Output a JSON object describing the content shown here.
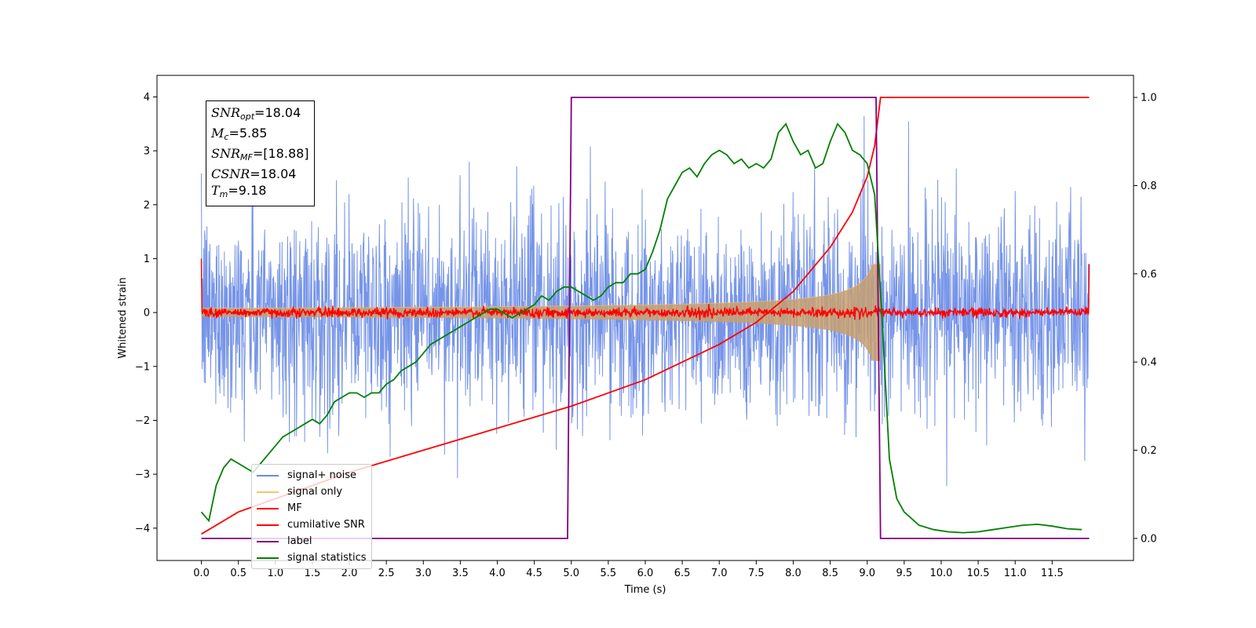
{
  "chart_data": {
    "type": "line",
    "title": "",
    "xlabel": "Time (s)",
    "ylabel": "Whitened strain",
    "y2label": "",
    "xlim": [
      -0.6,
      12.6
    ],
    "ylim": [
      -4.6,
      4.4
    ],
    "y2lim": [
      -0.05,
      1.05
    ],
    "x_ticks": [
      "0.0",
      "0.5",
      "1.0",
      "1.5",
      "2.0",
      "2.5",
      "3.0",
      "3.5",
      "4.0",
      "4.5",
      "5.0",
      "5.5",
      "6.0",
      "6.5",
      "7.0",
      "7.5",
      "8.0",
      "8.5",
      "9.0",
      "9.5",
      "10.0",
      "10.5",
      "11.0",
      "11.5"
    ],
    "y_ticks": [
      "4",
      "3",
      "2",
      "1",
      "0",
      "−1",
      "−2",
      "−3",
      "−4"
    ],
    "y2_ticks": [
      "1.0",
      "0.8",
      "0.6",
      "0.4",
      "0.2",
      "0.0"
    ],
    "legend_position": "lower-left",
    "grid": false,
    "duration_s": 12.0,
    "series": [
      {
        "name": "signal+ noise",
        "color": "#6a8be6",
        "axis": "left",
        "description": "whitened strain noise with embedded chirp, amplitude ~±2.5 with spikes to ±4",
        "envelope_typical": 1.5,
        "envelope_peak": 4.0
      },
      {
        "name": "signal only",
        "color": "#f7c56b",
        "axis": "left",
        "chirp_start_s": 0.0,
        "chirp_end_s": 9.18,
        "start_amplitude": 0.08,
        "end_amplitude": 0.9
      },
      {
        "name": "MF",
        "color": "#ff0000",
        "axis": "left",
        "description": "matched filter output fluctuating near 0",
        "noise_amplitude": 0.08
      },
      {
        "name": "cumilative SNR",
        "color": "#ff0000",
        "axis": "right",
        "x": [
          0.0,
          0.5,
          1.0,
          2.0,
          3.0,
          4.0,
          5.0,
          6.0,
          7.0,
          7.5,
          8.0,
          8.5,
          8.8,
          9.0,
          9.1,
          9.18,
          9.3,
          12.0
        ],
        "y": [
          0.01,
          0.06,
          0.09,
          0.15,
          0.2,
          0.25,
          0.3,
          0.36,
          0.44,
          0.49,
          0.56,
          0.66,
          0.74,
          0.82,
          0.89,
          1.0,
          1.0,
          1.0
        ]
      },
      {
        "name": "label",
        "color": "#800080",
        "axis": "right",
        "x": [
          0.0,
          4.95,
          5.0,
          9.12,
          9.18,
          12.0
        ],
        "y": [
          0.0,
          0.0,
          1.0,
          1.0,
          0.0,
          0.0
        ]
      },
      {
        "name": "signal statistics",
        "color": "#008000",
        "axis": "right",
        "x": [
          0.0,
          0.1,
          0.2,
          0.3,
          0.4,
          0.5,
          0.6,
          0.7,
          0.8,
          0.9,
          1.0,
          1.1,
          1.2,
          1.3,
          1.4,
          1.5,
          1.6,
          1.7,
          1.8,
          1.9,
          2.0,
          2.1,
          2.2,
          2.3,
          2.4,
          2.5,
          2.6,
          2.7,
          2.8,
          2.9,
          3.0,
          3.1,
          3.2,
          3.3,
          3.4,
          3.5,
          3.6,
          3.7,
          3.8,
          3.9,
          4.0,
          4.1,
          4.2,
          4.3,
          4.4,
          4.5,
          4.6,
          4.7,
          4.8,
          4.9,
          5.0,
          5.1,
          5.2,
          5.3,
          5.4,
          5.5,
          5.6,
          5.7,
          5.8,
          5.9,
          6.0,
          6.1,
          6.2,
          6.3,
          6.4,
          6.5,
          6.6,
          6.7,
          6.8,
          6.9,
          7.0,
          7.1,
          7.2,
          7.3,
          7.4,
          7.5,
          7.6,
          7.7,
          7.8,
          7.9,
          8.0,
          8.1,
          8.2,
          8.3,
          8.4,
          8.5,
          8.6,
          8.7,
          8.8,
          8.9,
          9.0,
          9.1,
          9.2,
          9.3,
          9.4,
          9.5,
          9.7,
          9.9,
          10.1,
          10.3,
          10.5,
          10.7,
          10.9,
          11.1,
          11.3,
          11.5,
          11.7,
          11.9
        ],
        "y": [
          0.06,
          0.04,
          0.12,
          0.16,
          0.18,
          0.17,
          0.16,
          0.15,
          0.17,
          0.19,
          0.21,
          0.23,
          0.24,
          0.25,
          0.26,
          0.27,
          0.26,
          0.28,
          0.31,
          0.32,
          0.33,
          0.33,
          0.32,
          0.33,
          0.33,
          0.35,
          0.36,
          0.38,
          0.39,
          0.4,
          0.42,
          0.44,
          0.45,
          0.46,
          0.47,
          0.48,
          0.49,
          0.5,
          0.51,
          0.52,
          0.52,
          0.51,
          0.5,
          0.51,
          0.52,
          0.53,
          0.55,
          0.54,
          0.56,
          0.57,
          0.57,
          0.56,
          0.55,
          0.54,
          0.55,
          0.57,
          0.58,
          0.58,
          0.6,
          0.6,
          0.61,
          0.65,
          0.7,
          0.77,
          0.8,
          0.83,
          0.84,
          0.82,
          0.85,
          0.87,
          0.88,
          0.87,
          0.85,
          0.86,
          0.84,
          0.85,
          0.84,
          0.86,
          0.92,
          0.94,
          0.9,
          0.87,
          0.88,
          0.84,
          0.85,
          0.9,
          0.94,
          0.92,
          0.88,
          0.87,
          0.85,
          0.78,
          0.5,
          0.18,
          0.09,
          0.06,
          0.03,
          0.02,
          0.015,
          0.013,
          0.015,
          0.02,
          0.025,
          0.03,
          0.032,
          0.028,
          0.022,
          0.02
        ]
      }
    ],
    "annotations": {
      "snr_opt": "18.04",
      "mc": "5.85",
      "snr_mf": "[18.88]",
      "csnr": "18.04",
      "tm": "9.18"
    }
  }
}
